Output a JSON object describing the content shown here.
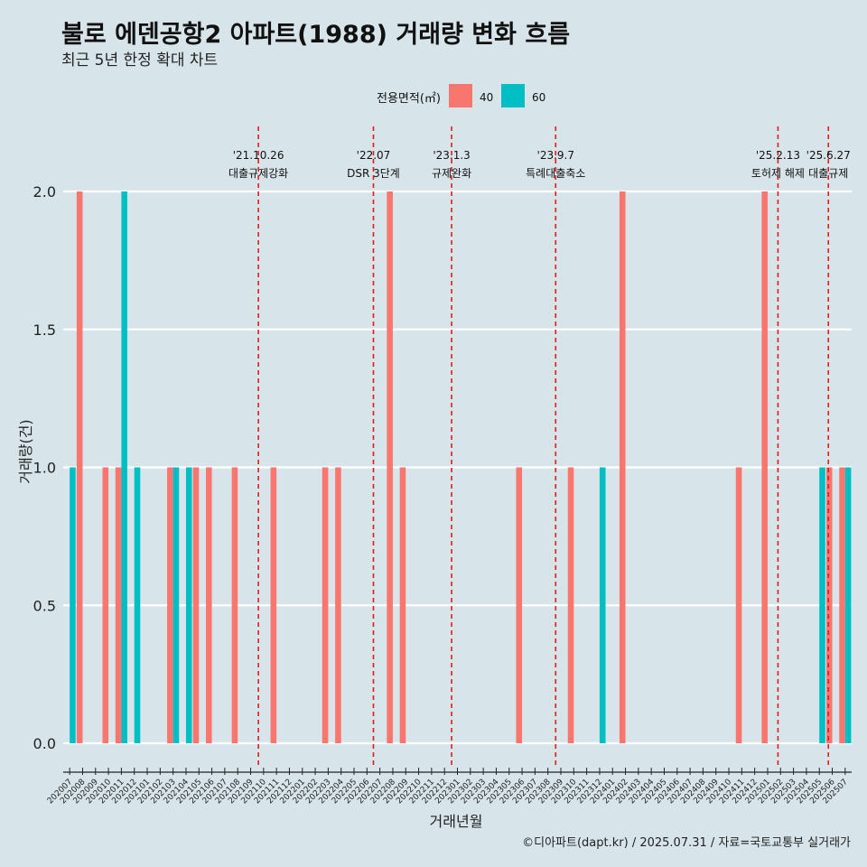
{
  "title": "불로 에덴공항2 아파트(1988) 거래량 변화 흐름",
  "subtitle": "최근 5년 한정 확대 차트",
  "caption": "©디아파트(dapt.kr) / 2025.07.31 / 자료=국토교통부 실거래가",
  "colors": {
    "40": "#f8766d",
    "60": "#00bfc4",
    "background": "#d7e4ea",
    "event_line": "#e31a1c"
  },
  "chart_data": {
    "type": "bar",
    "xlabel": "거래년월",
    "ylabel": "거래량(건)",
    "ylim": [
      0,
      2
    ],
    "yticks": [
      "0.0",
      "0.5",
      "1.0",
      "1.5",
      "2.0"
    ],
    "legend": {
      "title": "전용면적(㎡)",
      "position": "top"
    },
    "categories": [
      "202007",
      "202008",
      "202009",
      "202010",
      "202011",
      "202012",
      "202101",
      "202102",
      "202103",
      "202104",
      "202105",
      "202106",
      "202107",
      "202108",
      "202109",
      "202110",
      "202111",
      "202112",
      "202201",
      "202202",
      "202203",
      "202204",
      "202205",
      "202206",
      "202207",
      "202208",
      "202209",
      "202210",
      "202211",
      "202212",
      "202301",
      "202302",
      "202303",
      "202304",
      "202305",
      "202306",
      "202307",
      "202308",
      "202309",
      "202310",
      "202311",
      "202312",
      "202401",
      "202402",
      "202403",
      "202404",
      "202405",
      "202406",
      "202407",
      "202408",
      "202409",
      "202410",
      "202411",
      "202412",
      "202501",
      "202502",
      "202503",
      "202504",
      "202505",
      "202506",
      "202507"
    ],
    "series": [
      {
        "name": "40",
        "values": [
          0,
          2,
          0,
          1,
          1,
          0,
          0,
          0,
          1,
          0,
          1,
          1,
          0,
          1,
          0,
          0,
          1,
          0,
          0,
          0,
          1,
          1,
          0,
          0,
          0,
          2,
          1,
          0,
          0,
          0,
          0,
          0,
          0,
          0,
          0,
          1,
          0,
          0,
          0,
          1,
          0,
          0,
          0,
          2,
          0,
          0,
          0,
          0,
          0,
          0,
          0,
          0,
          1,
          0,
          2,
          0,
          0,
          0,
          0,
          1,
          1
        ]
      },
      {
        "name": "60",
        "values": [
          1,
          0,
          0,
          0,
          2,
          1,
          0,
          0,
          1,
          1,
          0,
          0,
          0,
          0,
          0,
          0,
          0,
          0,
          0,
          0,
          0,
          0,
          0,
          0,
          0,
          0,
          0,
          0,
          0,
          0,
          0,
          0,
          0,
          0,
          0,
          0,
          0,
          0,
          0,
          0,
          0,
          1,
          0,
          0,
          0,
          0,
          0,
          0,
          0,
          0,
          0,
          0,
          0,
          0,
          0,
          0,
          0,
          0,
          1,
          0,
          1
        ]
      }
    ],
    "events": [
      {
        "date": "'21.10.26",
        "label": "대출규제강화",
        "pos": 15.1
      },
      {
        "date": "'22.07",
        "label": "DSR 3단계",
        "pos": 24.0
      },
      {
        "date": "'23.1.3",
        "label": "규제완화",
        "pos": 30.05
      },
      {
        "date": "'23.9.7",
        "label": "특례대출축소",
        "pos": 38.1
      },
      {
        "date": "'25.2.13",
        "label": "토허제 해제",
        "pos": 55.3
      },
      {
        "date": "'25.6.27",
        "label": "대출규제",
        "pos": 59.2
      }
    ]
  }
}
